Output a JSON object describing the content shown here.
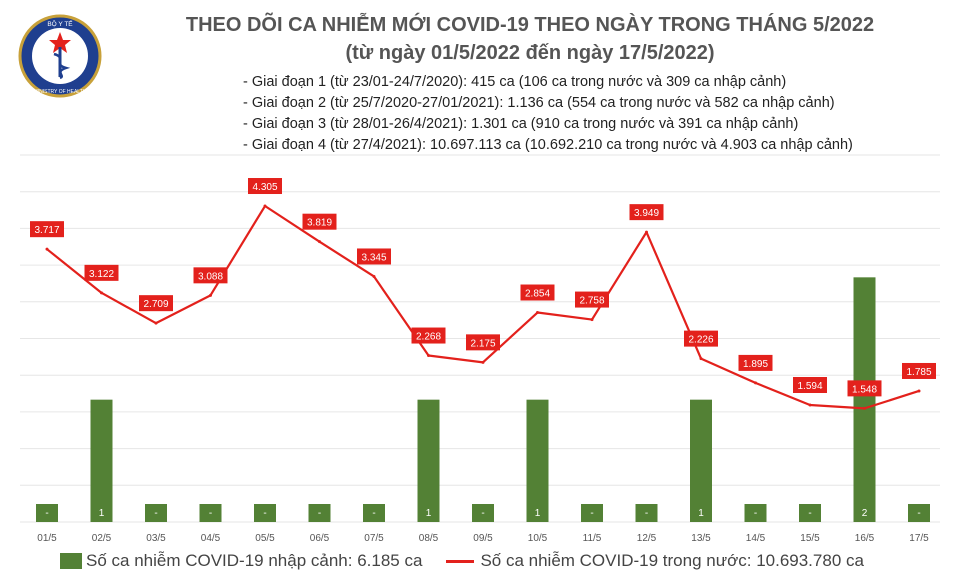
{
  "header": {
    "logo_text_top": "BỘ Y TẾ",
    "logo_text_bottom": "MINISTRY OF HEALTH",
    "title": "THEO DÕI CA NHIỄM MỚI COVID-19 THEO NGÀY TRONG THÁNG 5/2022",
    "subtitle": "(từ ngày 01/5/2022 đến ngày 17/5/2022)",
    "stages": [
      "- Giai đoạn 1 (từ 23/01-24/7/2020): 415 ca (106 ca trong nước và 309 ca nhập cảnh)",
      "- Giai đoạn 2 (từ 25/7/2020-27/01/2021): 1.136 ca (554 ca trong nước và 582 ca nhập cảnh)",
      "- Giai đoạn 3 (từ 28/01-26/4/2021): 1.301 ca (910 ca trong nước và 391 ca nhập cảnh)",
      "- Giai đoạn 4 (từ 27/4/2021): 10.697.113 ca (10.692.210 ca trong nước và 4.903 ca nhập cảnh)"
    ]
  },
  "colors": {
    "bar": "#538135",
    "line": "#e3211c",
    "label_bg": "#e3211c",
    "label_text": "#ffffff",
    "grid": "#e6e6e6"
  },
  "chart_data": {
    "type": "bar+line",
    "categories": [
      "01/5",
      "02/5",
      "03/5",
      "04/5",
      "05/5",
      "06/5",
      "07/5",
      "08/5",
      "09/5",
      "10/5",
      "11/5",
      "12/5",
      "13/5",
      "14/5",
      "15/5",
      "16/5",
      "17/5"
    ],
    "series": [
      {
        "name": "Số ca nhiễm COVID-19 nhập cảnh: 6.185 ca",
        "kind": "bar",
        "axis": "right",
        "values": [
          0,
          1,
          0,
          0,
          0,
          0,
          0,
          1,
          0,
          1,
          0,
          0,
          1,
          0,
          0,
          2,
          0
        ],
        "labels": [
          "-",
          "1",
          "-",
          "-",
          "-",
          "-",
          "-",
          "1",
          "-",
          "1",
          "-",
          "-",
          "1",
          "-",
          "-",
          "2",
          "-"
        ]
      },
      {
        "name": "Số ca nhiễm COVID-19 trong nước: 10.693.780 ca",
        "kind": "line",
        "axis": "left",
        "values": [
          3717,
          3122,
          2709,
          3088,
          4305,
          3819,
          3345,
          2268,
          2175,
          2854,
          2758,
          3949,
          2226,
          1895,
          1594,
          1548,
          1785
        ],
        "labels": [
          "3.717",
          "3.122",
          "2.709",
          "3.088",
          "4.305",
          "3.819",
          "3.345",
          "2.268",
          "2.175",
          "2.854",
          "2.758",
          "3.949",
          "2.226",
          "1.895",
          "1.594",
          "1.548",
          "1.785"
        ]
      }
    ],
    "left_axis": {
      "range": [
        0,
        5000
      ]
    },
    "right_axis": {
      "range": [
        0,
        3
      ]
    },
    "grid": true,
    "legend_position": "bottom"
  }
}
